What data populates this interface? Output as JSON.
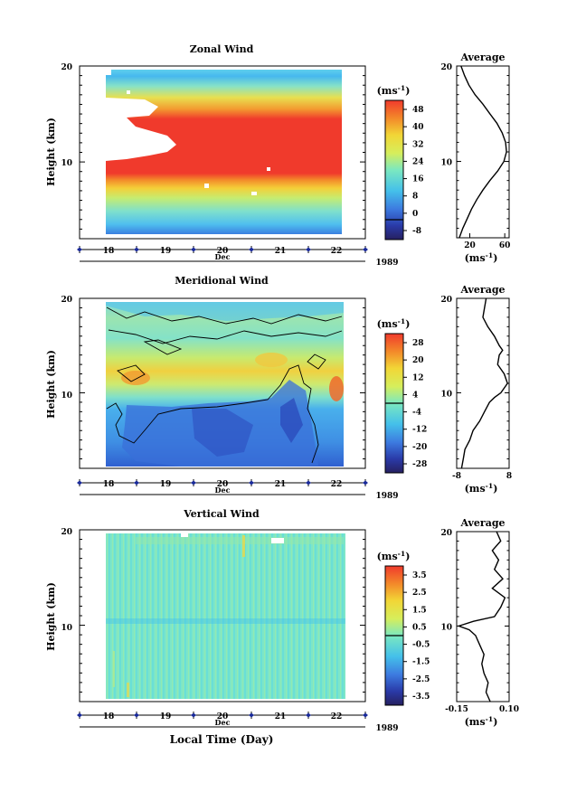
{
  "chart_data": [
    {
      "type": "heatmap",
      "title": "Zonal Wind",
      "ylabel": "Height (km)",
      "yticks": [
        "20",
        "10"
      ],
      "ylim": [
        2,
        20
      ],
      "xticks": [
        "18",
        "19",
        "20",
        "21",
        "22"
      ],
      "month_label": "Dec",
      "year_label": "1989",
      "colorbar_title": "(ms-1)",
      "colorbar_labels": [
        "48",
        "40",
        "32",
        "24",
        "16",
        "8",
        "0",
        "-8"
      ],
      "colorbar_range": [
        -8,
        48
      ],
      "zero_contour": false
    },
    {
      "type": "line",
      "title": "Average",
      "xlabel": "(ms-1)",
      "xticks": [
        "20",
        "60"
      ],
      "yticks": [
        "20",
        "10"
      ],
      "xlim": [
        5,
        65
      ],
      "ylim": [
        2,
        20
      ],
      "series": [
        {
          "points": [
            [
              8,
              2
            ],
            [
              12,
              3
            ],
            [
              17,
              4
            ],
            [
              22,
              5
            ],
            [
              28,
              6
            ],
            [
              35,
              7
            ],
            [
              43,
              8
            ],
            [
              52,
              9
            ],
            [
              59,
              10
            ],
            [
              62,
              11
            ],
            [
              61,
              12
            ],
            [
              57,
              13
            ],
            [
              51,
              14
            ],
            [
              43,
              15
            ],
            [
              35,
              16
            ],
            [
              26,
              17
            ],
            [
              19,
              18
            ],
            [
              14,
              19
            ],
            [
              10,
              20
            ]
          ]
        }
      ]
    },
    {
      "type": "heatmap",
      "title": "Meridional Wind",
      "ylabel": "Height (km)",
      "yticks": [
        "20",
        "10"
      ],
      "ylim": [
        2,
        20
      ],
      "xticks": [
        "18",
        "19",
        "20",
        "21",
        "22"
      ],
      "month_label": "Dec",
      "year_label": "1989",
      "colorbar_title": "(ms-1)",
      "colorbar_labels": [
        "28",
        "20",
        "12",
        "4",
        "-4",
        "-12",
        "-20",
        "-28"
      ],
      "colorbar_range": [
        -28,
        28
      ],
      "zero_contour": true
    },
    {
      "type": "line",
      "title": "Average",
      "xlabel": "(ms-1)",
      "xticks": [
        "-8",
        "8"
      ],
      "yticks": [
        "20",
        "10"
      ],
      "xlim": [
        -8,
        8
      ],
      "ylim": [
        2,
        20
      ],
      "series": [
        {
          "points": [
            [
              -6.5,
              2
            ],
            [
              -6,
              3
            ],
            [
              -5.5,
              4
            ],
            [
              -4,
              5
            ],
            [
              -3,
              6
            ],
            [
              -1,
              7
            ],
            [
              0.5,
              8
            ],
            [
              2,
              9
            ],
            [
              3.5,
              9.5
            ],
            [
              5.5,
              10
            ],
            [
              7.5,
              11
            ],
            [
              6.5,
              12
            ],
            [
              4.5,
              13
            ],
            [
              5,
              14
            ],
            [
              6,
              14.5
            ],
            [
              5,
              15
            ],
            [
              3.5,
              16
            ],
            [
              1.5,
              17
            ],
            [
              0,
              18
            ],
            [
              0.5,
              19
            ],
            [
              1,
              20
            ]
          ]
        }
      ]
    },
    {
      "type": "heatmap",
      "title": "Vertical Wind",
      "ylabel": "Height (km)",
      "xlabel": "Local Time (Day)",
      "yticks": [
        "20",
        "10"
      ],
      "ylim": [
        2,
        20
      ],
      "xticks": [
        "18",
        "19",
        "20",
        "21",
        "22"
      ],
      "month_label": "Dec",
      "year_label": "1989",
      "colorbar_title": "(ms-1)",
      "colorbar_labels": [
        "3.5",
        "2.5",
        "1.5",
        "0.5",
        "-0.5",
        "-1.5",
        "-2.5",
        "-3.5"
      ],
      "colorbar_range": [
        -4,
        4
      ],
      "zero_contour": false
    },
    {
      "type": "line",
      "title": "Average",
      "xlabel": "(ms-1)",
      "xticks": [
        "-0.15",
        "0.10"
      ],
      "yticks": [
        "20",
        "10"
      ],
      "xlim": [
        -0.15,
        0.1
      ],
      "ylim": [
        2,
        20
      ],
      "series": [
        {
          "points": [
            [
              0.01,
              2
            ],
            [
              -0.01,
              3
            ],
            [
              0.0,
              4
            ],
            [
              -0.02,
              5
            ],
            [
              -0.03,
              6
            ],
            [
              -0.02,
              7
            ],
            [
              -0.04,
              8
            ],
            [
              -0.06,
              9
            ],
            [
              -0.09,
              9.6
            ],
            [
              -0.14,
              10
            ],
            [
              -0.07,
              10.5
            ],
            [
              0.03,
              11
            ],
            [
              0.06,
              12
            ],
            [
              0.08,
              13
            ],
            [
              0.02,
              14
            ],
            [
              0.07,
              15
            ],
            [
              0.03,
              16
            ],
            [
              0.05,
              17
            ],
            [
              0.02,
              18
            ],
            [
              0.06,
              19
            ],
            [
              0.04,
              20
            ]
          ]
        }
      ]
    }
  ]
}
